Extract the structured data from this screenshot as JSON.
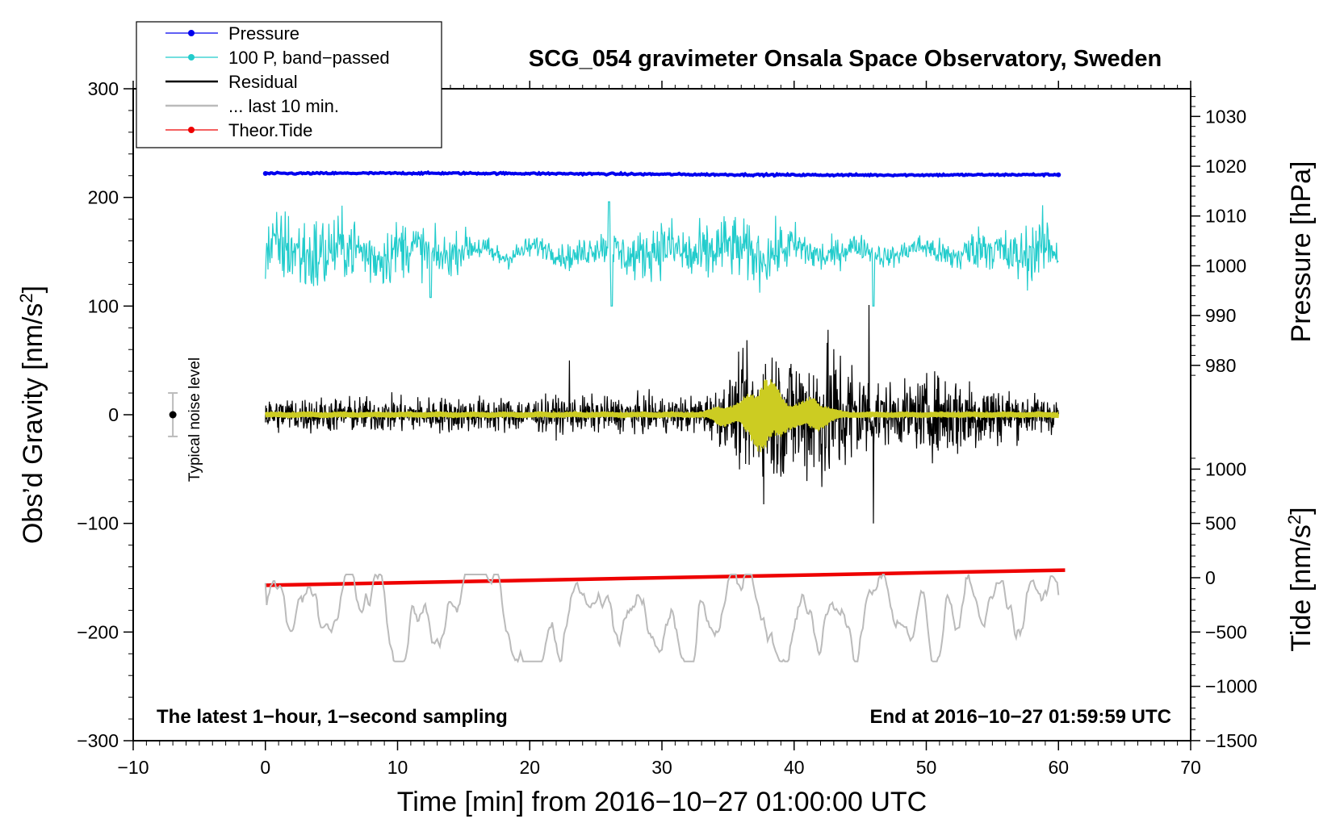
{
  "chart_data": {
    "type": "line",
    "title": "SCG_054 gravimeter Onsala Space Observatory, Sweden",
    "xlabel": "Time [min] from 2016−10−27 01:00:00 UTC",
    "ylabel_left": "Obs’d Gravity [nm/s",
    "ylabel_left_sup": "2",
    "ylabel_left_end": "]",
    "ylabel_right_pressure": "Pressure [hPa]",
    "ylabel_right_tide": "Tide [nm/s",
    "ylabel_right_tide_sup": "2",
    "ylabel_right_tide_end": "]",
    "xlim": [
      -10,
      70
    ],
    "ylim": [
      -300,
      300
    ],
    "x_ticks": [
      -10,
      0,
      10,
      20,
      30,
      40,
      50,
      60,
      70
    ],
    "x_tick_labels": [
      "−10",
      "0",
      "10",
      "20",
      "30",
      "40",
      "50",
      "60",
      "70"
    ],
    "y_ticks": [
      -300,
      -200,
      -100,
      0,
      100,
      200,
      300
    ],
    "y_tick_labels": [
      "−300",
      "−200",
      "−100",
      "0",
      "100",
      "200",
      "300"
    ],
    "pressure_ticks": [
      980,
      990,
      1000,
      1010,
      1020,
      1030
    ],
    "pressure_tick_labels": [
      "980",
      "990",
      "1000",
      "1010",
      "1020",
      "1030"
    ],
    "tide_ticks": [
      -1500,
      -1000,
      -500,
      0,
      500,
      1000
    ],
    "tide_tick_labels": [
      "−1500",
      "−1000",
      "−500",
      "0",
      "500",
      "1000"
    ],
    "legend": [
      {
        "label": "Pressure",
        "color": "#0000ee",
        "marker": true
      },
      {
        "label": "100 P, band−passed",
        "color": "#22cccc",
        "marker": true
      },
      {
        "label": "Residual",
        "color": "#000000",
        "marker": false
      },
      {
        "label": "... last 10 min.",
        "color": "#bbbbbb",
        "marker": false
      },
      {
        "label": "Theor.Tide",
        "color": "#ee0000",
        "marker": true
      }
    ],
    "series": [
      {
        "name": "Pressure",
        "color": "#0000ee",
        "x_range": [
          0,
          60
        ],
        "level": 222,
        "noise": 0.6
      },
      {
        "name": "100 P, band−passed",
        "color": "#22cccc",
        "x_range": [
          0,
          60
        ],
        "level": 150,
        "amplitude": 18
      },
      {
        "name": "Residual",
        "color": "#000000",
        "x_range": [
          0,
          60
        ],
        "level": 0,
        "amplitude": 8,
        "peak": 100,
        "min": -100
      },
      {
        "name": "Residual band-passed",
        "color": "#cccc22",
        "x_range": [
          0,
          60
        ],
        "level": 0,
        "amplitude": 4,
        "peak": 35
      },
      {
        "name": "... last 10 min.",
        "color": "#bbbbbb",
        "x_range": [
          0,
          60
        ],
        "level": -185,
        "amplitude": 15
      },
      {
        "name": "Theor.Tide",
        "color": "#ee0000",
        "x": [
          0,
          60.5
        ],
        "y": [
          -157,
          -143
        ]
      }
    ],
    "noise_level": {
      "label": "Typical noise level",
      "x": -7,
      "y": 0,
      "error": 20
    },
    "note_left": "The latest 1−hour, 1−second sampling",
    "note_right": "End at 2016−10−27 01:59:59 UTC"
  }
}
